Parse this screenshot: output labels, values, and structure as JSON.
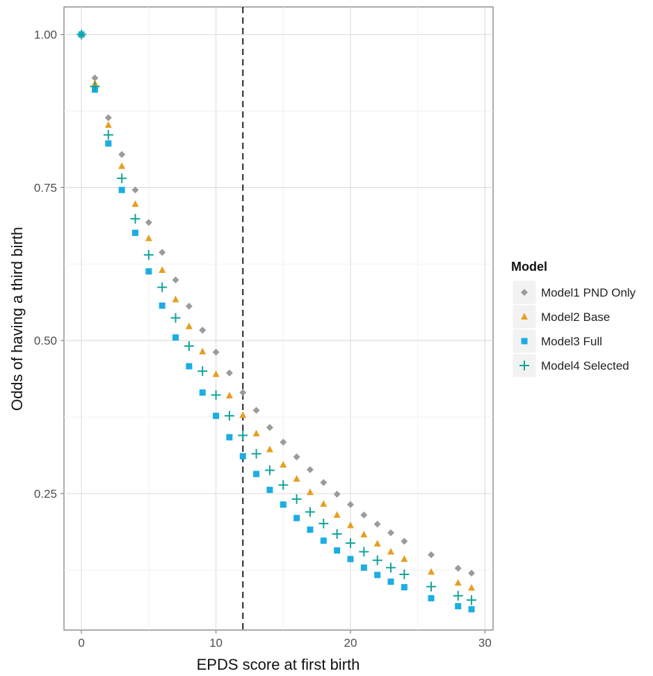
{
  "chart_data": {
    "type": "scatter",
    "title": "",
    "xlabel": "EPDS score at first birth",
    "ylabel": "Odds of having a third birth",
    "xlim": [
      -1.3,
      30.6
    ],
    "ylim": [
      0.027,
      1.045
    ],
    "x_ticks": [
      0,
      10,
      20,
      30
    ],
    "y_ticks": [
      0.25,
      0.5,
      0.75,
      1.0
    ],
    "x_tick_labels": [
      "0",
      "10",
      "20",
      "30"
    ],
    "y_tick_labels": [
      "0.25",
      "0.50",
      "0.75",
      "1.00"
    ],
    "grid": true,
    "reference_line": {
      "x": 12,
      "style": "dashed"
    },
    "legend": {
      "title": "Model",
      "position": "right"
    },
    "x": [
      0,
      1,
      2,
      3,
      4,
      5,
      6,
      7,
      8,
      9,
      10,
      11,
      12,
      13,
      14,
      15,
      16,
      17,
      18,
      19,
      20,
      21,
      22,
      23,
      24,
      26,
      28,
      29
    ],
    "series": [
      {
        "name": "Model1 PND Only",
        "marker": "diamond",
        "color": "#9b9b9b",
        "values": [
          1.0,
          0.929,
          0.864,
          0.804,
          0.746,
          0.693,
          0.644,
          0.599,
          0.556,
          0.517,
          0.481,
          0.447,
          0.415,
          0.386,
          0.358,
          0.334,
          0.31,
          0.289,
          0.268,
          0.249,
          0.232,
          0.215,
          0.2,
          0.186,
          0.172,
          0.15,
          0.128,
          0.12
        ]
      },
      {
        "name": "Model2 Base",
        "marker": "triangle",
        "color": "#e69f22",
        "values": [
          1.0,
          0.92,
          0.852,
          0.785,
          0.723,
          0.667,
          0.615,
          0.567,
          0.523,
          0.482,
          0.445,
          0.41,
          0.378,
          0.348,
          0.322,
          0.297,
          0.274,
          0.252,
          0.233,
          0.215,
          0.198,
          0.183,
          0.168,
          0.155,
          0.143,
          0.122,
          0.104,
          0.096
        ]
      },
      {
        "name": "Model3 Full",
        "marker": "square",
        "color": "#1aaee3",
        "values": [
          1.0,
          0.91,
          0.822,
          0.746,
          0.676,
          0.613,
          0.557,
          0.505,
          0.458,
          0.415,
          0.377,
          0.342,
          0.311,
          0.282,
          0.256,
          0.232,
          0.21,
          0.191,
          0.173,
          0.157,
          0.143,
          0.129,
          0.117,
          0.106,
          0.097,
          0.079,
          0.066,
          0.061
        ]
      },
      {
        "name": "Model4 Selected",
        "marker": "plus",
        "color": "#12a39a",
        "values": [
          1.0,
          0.915,
          0.836,
          0.765,
          0.699,
          0.64,
          0.587,
          0.537,
          0.491,
          0.45,
          0.411,
          0.377,
          0.345,
          0.315,
          0.288,
          0.264,
          0.241,
          0.22,
          0.201,
          0.184,
          0.169,
          0.155,
          0.141,
          0.129,
          0.118,
          0.098,
          0.083,
          0.076
        ]
      }
    ]
  }
}
